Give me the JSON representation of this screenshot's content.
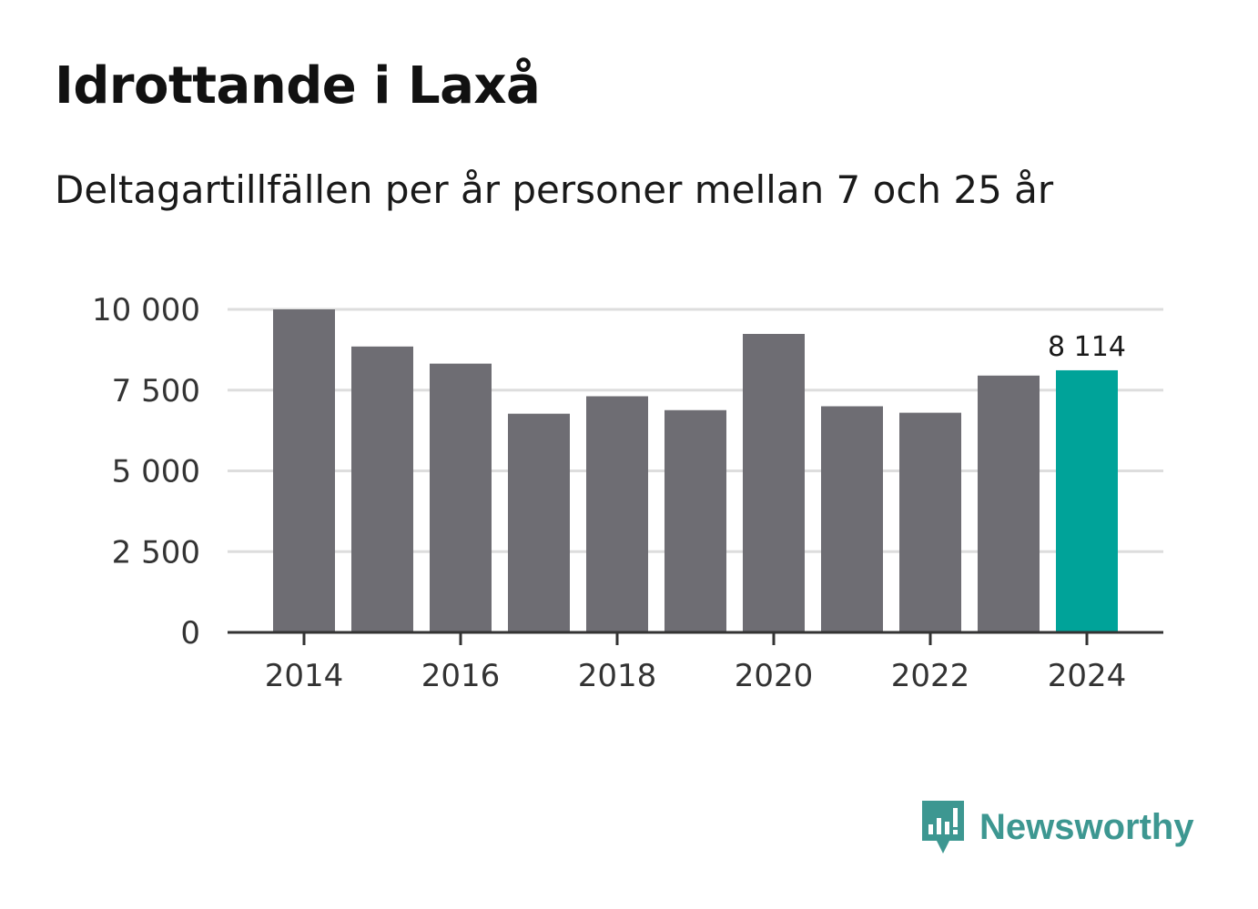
{
  "title": "Idrottande i Laxå",
  "subtitle": "Deltagartillfällen per år personer mellan 7 och 25 år",
  "brand": {
    "name": "Newsworthy",
    "icon": "newsworthy-logo-icon",
    "color": "#3d9791"
  },
  "colors": {
    "bar": "#6e6d73",
    "highlight": "#00a399",
    "grid": "#dddddd",
    "axis": "#333333"
  },
  "chart_data": {
    "type": "bar",
    "title": "Idrottande i Laxå",
    "subtitle": "Deltagartillfällen per år personer mellan 7 och 25 år",
    "xlabel": "",
    "ylabel": "",
    "categories": [
      "2014",
      "2015",
      "2016",
      "2017",
      "2018",
      "2019",
      "2020",
      "2021",
      "2022",
      "2023",
      "2024"
    ],
    "values": [
      10000,
      8850,
      8320,
      6770,
      7310,
      6880,
      9240,
      7000,
      6800,
      7950,
      8114
    ],
    "highlight_index": 10,
    "ylim": [
      0,
      10000
    ],
    "yticks": [
      0,
      2500,
      5000,
      7500,
      10000
    ],
    "ytick_labels": [
      "0",
      "2 500",
      "5 000",
      "7 500",
      "10 000"
    ],
    "xtick_labels": [
      "2014",
      "2016",
      "2018",
      "2020",
      "2022",
      "2024"
    ],
    "data_labels": [
      {
        "index": 10,
        "text": "8 114"
      }
    ],
    "grid": true,
    "legend": "none"
  }
}
